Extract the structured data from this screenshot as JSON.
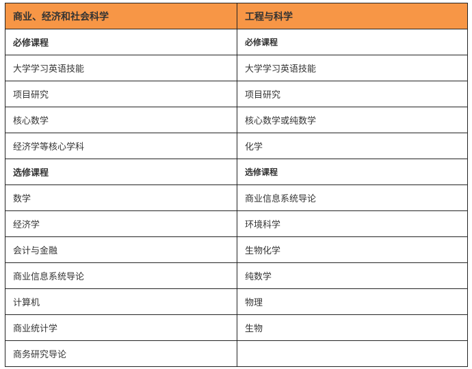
{
  "header_color": "#f79646",
  "columns": [
    "商业、经济和社会科学",
    "工程与科学"
  ],
  "rows": [
    {
      "left": "必修课程",
      "right": "必修课程",
      "section": true
    },
    {
      "left": "大学学习英语技能",
      "right": "大学学习英语技能"
    },
    {
      "left": "项目研究",
      "right": "项目研究"
    },
    {
      "left": "核心数学",
      "right": "核心数学或纯数学"
    },
    {
      "left": "经济学等核心学科",
      "right": "化学"
    },
    {
      "left": "选修课程",
      "right": "选修课程",
      "section": true
    },
    {
      "left": "数学",
      "right": "商业信息系统导论"
    },
    {
      "left": "经济学",
      "right": "环境科学"
    },
    {
      "left": "会计与金融",
      "right": "生物化学"
    },
    {
      "left": "商业信息系统导论",
      "right": "纯数学"
    },
    {
      "left": "计算机",
      "right": "物理"
    },
    {
      "left": "商业统计学",
      "right": "生物"
    },
    {
      "left": "商务研究导论",
      "right": ""
    }
  ]
}
